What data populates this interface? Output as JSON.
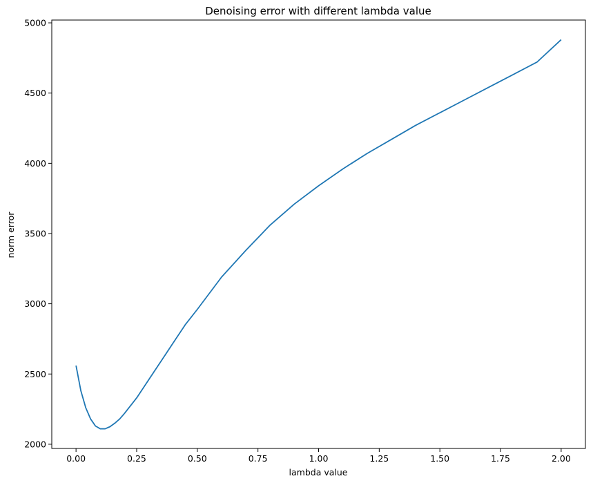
{
  "chart_data": {
    "type": "line",
    "title": "Denoising error with different lambda value",
    "xlabel": "lambda value",
    "ylabel": "norm error",
    "xlim": [
      -0.1,
      2.1
    ],
    "ylim": [
      1970,
      5020
    ],
    "grid": false,
    "x_ticks": [
      0.0,
      0.25,
      0.5,
      0.75,
      1.0,
      1.25,
      1.5,
      1.75,
      2.0
    ],
    "x_tick_labels": [
      "0.00",
      "0.25",
      "0.50",
      "0.75",
      "1.00",
      "1.25",
      "1.50",
      "1.75",
      "2.00"
    ],
    "y_ticks": [
      2000,
      2500,
      3000,
      3500,
      4000,
      4500,
      5000
    ],
    "y_tick_labels": [
      "2000",
      "2500",
      "3000",
      "3500",
      "4000",
      "4500",
      "5000"
    ],
    "series": [
      {
        "color": "#1f77b4",
        "x": [
          0.0,
          0.02,
          0.04,
          0.06,
          0.08,
          0.1,
          0.12,
          0.14,
          0.16,
          0.18,
          0.2,
          0.25,
          0.3,
          0.35,
          0.4,
          0.45,
          0.5,
          0.6,
          0.7,
          0.8,
          0.9,
          1.0,
          1.1,
          1.2,
          1.3,
          1.4,
          1.5,
          1.6,
          1.7,
          1.8,
          1.9,
          2.0
        ],
        "y": [
          2560,
          2380,
          2260,
          2180,
          2130,
          2110,
          2110,
          2125,
          2150,
          2180,
          2220,
          2330,
          2460,
          2590,
          2720,
          2850,
          2960,
          3190,
          3380,
          3560,
          3710,
          3840,
          3960,
          4070,
          4170,
          4270,
          4360,
          4450,
          4540,
          4630,
          4720,
          4880
        ]
      }
    ]
  }
}
